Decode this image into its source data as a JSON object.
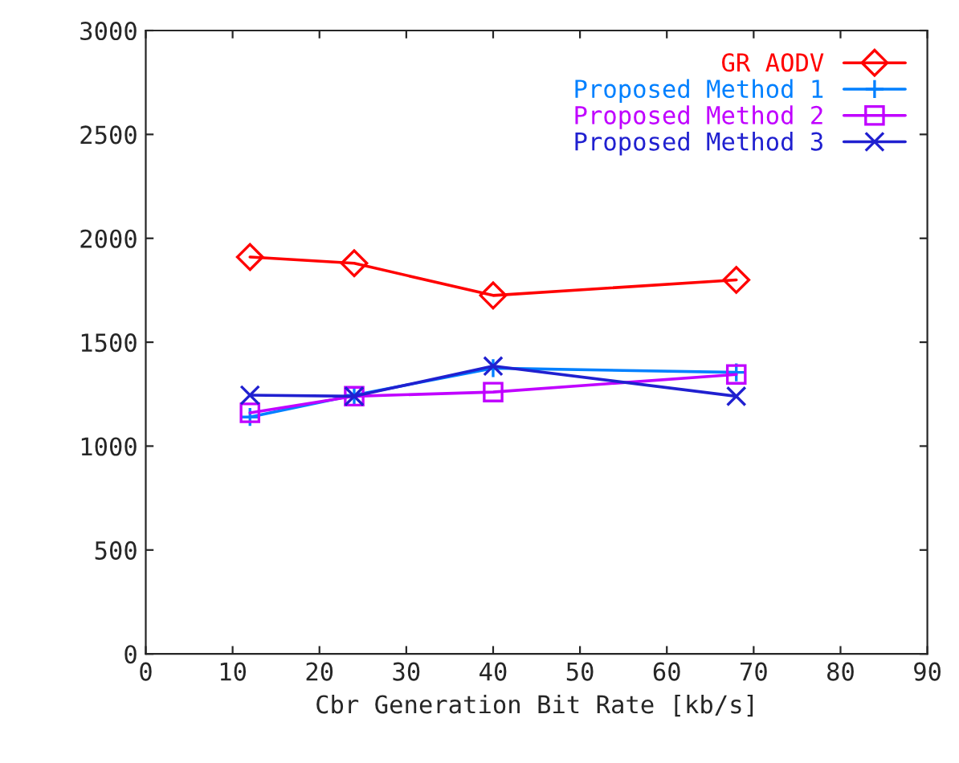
{
  "chart_data": {
    "type": "line",
    "xlabel": "Cbr Generation Bit Rate [kb/s]",
    "x": [
      12,
      24,
      40,
      68
    ],
    "xlim": [
      0,
      90
    ],
    "xticks": [
      0,
      10,
      20,
      30,
      40,
      50,
      60,
      70,
      80,
      90
    ],
    "ylim": [
      0,
      3000
    ],
    "yticks": [
      0,
      500,
      1000,
      1500,
      2000,
      2500,
      3000
    ],
    "grid": false,
    "legend": "top right",
    "series": [
      {
        "name": "GR AODV",
        "color": "#ff0000",
        "marker": "diamond",
        "values": [
          1910,
          1880,
          1725,
          1800
        ]
      },
      {
        "name": "Proposed Method 1",
        "color": "#0080ff",
        "marker": "plus",
        "values": [
          1140,
          1245,
          1375,
          1355
        ]
      },
      {
        "name": "Proposed Method 2",
        "color": "#c000ff",
        "marker": "square",
        "values": [
          1160,
          1240,
          1260,
          1345
        ]
      },
      {
        "name": "Proposed Method 3",
        "color": "#2020d0",
        "marker": "cross",
        "values": [
          1245,
          1240,
          1385,
          1240
        ]
      }
    ]
  }
}
